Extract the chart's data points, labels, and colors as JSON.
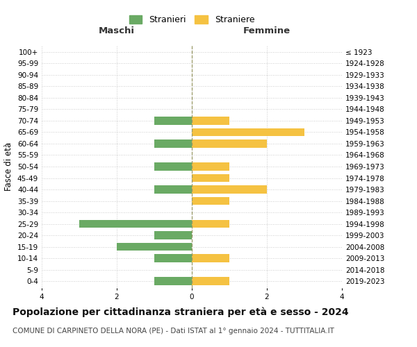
{
  "age_groups": [
    "0-4",
    "5-9",
    "10-14",
    "15-19",
    "20-24",
    "25-29",
    "30-34",
    "35-39",
    "40-44",
    "45-49",
    "50-54",
    "55-59",
    "60-64",
    "65-69",
    "70-74",
    "75-79",
    "80-84",
    "85-89",
    "90-94",
    "95-99",
    "100+"
  ],
  "birth_years": [
    "2019-2023",
    "2014-2018",
    "2009-2013",
    "2004-2008",
    "1999-2003",
    "1994-1998",
    "1989-1993",
    "1984-1988",
    "1979-1983",
    "1974-1978",
    "1969-1973",
    "1964-1968",
    "1959-1963",
    "1954-1958",
    "1949-1953",
    "1944-1948",
    "1939-1943",
    "1934-1938",
    "1929-1933",
    "1924-1928",
    "≤ 1923"
  ],
  "maschi": [
    1,
    0,
    1,
    2,
    1,
    3,
    0,
    0,
    1,
    0,
    1,
    0,
    1,
    0,
    1,
    0,
    0,
    0,
    0,
    0,
    0
  ],
  "femmine": [
    1,
    0,
    1,
    0,
    0,
    1,
    0,
    1,
    2,
    1,
    1,
    0,
    2,
    3,
    1,
    0,
    0,
    0,
    0,
    0,
    0
  ],
  "maschi_color": "#6aaa64",
  "femmine_color": "#f5c242",
  "bar_height": 0.7,
  "xlim": [
    -4,
    4
  ],
  "xticks": [
    -4,
    -2,
    0,
    2,
    4
  ],
  "xticklabels": [
    "4",
    "2",
    "0",
    "2",
    "4"
  ],
  "title": "Popolazione per cittadinanza straniera per età e sesso - 2024",
  "subtitle": "COMUNE DI CARPINETO DELLA NORA (PE) - Dati ISTAT al 1° gennaio 2024 - TUTTITALIA.IT",
  "left_header": "Maschi",
  "right_header": "Femmine",
  "left_ylabel": "Fasce di età",
  "legend_maschi": "Stranieri",
  "legend_femmine": "Straniere",
  "background_color": "#ffffff",
  "grid_color": "#cccccc",
  "title_fontsize": 10,
  "subtitle_fontsize": 7.5,
  "tick_fontsize": 7.5,
  "header_fontsize": 9.5
}
